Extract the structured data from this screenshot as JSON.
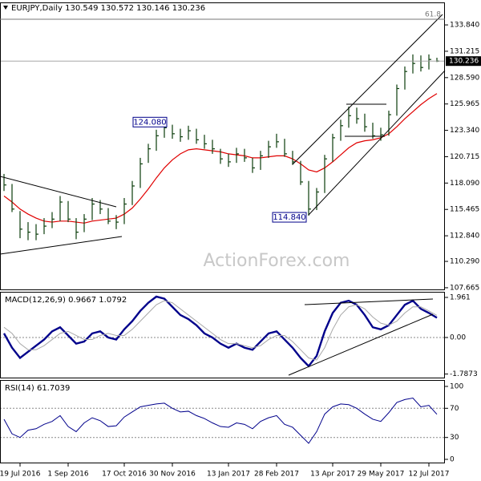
{
  "chart_data": [
    {
      "type": "ohlc",
      "title": "EURJPY,Daily  130.549 130.572 130.146 130.236",
      "watermark": "ActionForex.com",
      "fib_label": "61.8",
      "annotations": [
        {
          "value": 124.08,
          "label": "124.080"
        },
        {
          "value": 114.84,
          "label": "114.840"
        }
      ],
      "categories": [
        null,
        null,
        "19 Jul 2016",
        null,
        null,
        null,
        null,
        null,
        "1 Sep 2016",
        null,
        null,
        null,
        null,
        null,
        null,
        "17 Oct 2016",
        null,
        null,
        null,
        null,
        null,
        "30 Nov 2016",
        null,
        null,
        null,
        null,
        null,
        null,
        "13 Jan 2017",
        null,
        null,
        null,
        null,
        null,
        "28 Feb 2017",
        null,
        null,
        null,
        null,
        null,
        null,
        "13 Apr 2017",
        null,
        null,
        null,
        null,
        null,
        "29 May 2017",
        null,
        null,
        null,
        null,
        null,
        "12 Jul 2017",
        null
      ],
      "high": [
        119.0,
        118.0,
        115.3,
        114.2,
        114.0,
        114.6,
        115.2,
        116.8,
        116.3,
        114.6,
        115.0,
        116.6,
        116.4,
        115.6,
        114.9,
        116.6,
        118.3,
        120.6,
        122.0,
        123.4,
        124.08,
        123.9,
        123.5,
        123.8,
        123.5,
        122.9,
        122.4,
        121.5,
        121.0,
        121.6,
        121.5,
        120.6,
        121.3,
        122.3,
        123.0,
        122.5,
        121.3,
        120.3,
        118.3,
        117.6,
        120.9,
        123.0,
        124.4,
        125.7,
        125.6,
        125.0,
        124.1,
        123.6,
        125.3,
        127.9,
        129.7,
        130.9,
        130.8,
        130.9,
        130.572
      ],
      "low": [
        117.3,
        115.2,
        112.6,
        112.4,
        112.4,
        113.0,
        113.6,
        114.3,
        114.2,
        112.5,
        113.2,
        114.4,
        115.0,
        114.0,
        113.5,
        114.0,
        115.9,
        117.6,
        120.1,
        121.3,
        122.6,
        122.5,
        122.2,
        122.4,
        122.0,
        121.5,
        121.0,
        120.0,
        119.7,
        120.1,
        120.2,
        119.1,
        119.4,
        120.6,
        121.6,
        120.7,
        119.9,
        117.9,
        114.84,
        115.4,
        117.1,
        120.2,
        122.3,
        123.6,
        124.0,
        123.2,
        122.5,
        122.3,
        122.8,
        124.8,
        127.4,
        129.0,
        129.2,
        129.4,
        130.146
      ],
      "close": [
        117.9,
        115.5,
        113.5,
        113.2,
        113.0,
        113.8,
        114.5,
        116.2,
        114.5,
        113.2,
        114.5,
        116.0,
        115.5,
        114.3,
        114.2,
        116.0,
        117.8,
        120.0,
        121.5,
        122.8,
        123.6,
        123.0,
        122.7,
        123.3,
        122.4,
        122.0,
        121.5,
        120.5,
        120.2,
        121.0,
        120.6,
        119.6,
        120.8,
        121.7,
        122.2,
        121.0,
        120.2,
        118.2,
        115.5,
        117.2,
        120.5,
        122.6,
        123.8,
        124.8,
        124.5,
        123.7,
        122.8,
        122.9,
        124.9,
        127.5,
        129.2,
        130.0,
        129.6,
        130.4,
        130.236
      ],
      "bar_color": "#0b3d0b",
      "ma_values": [
        116.8,
        116.2,
        115.5,
        115.0,
        114.6,
        114.3,
        114.2,
        114.3,
        114.3,
        114.2,
        114.1,
        114.3,
        114.4,
        114.5,
        114.6,
        115.0,
        115.6,
        116.5,
        117.5,
        118.6,
        119.6,
        120.4,
        121.0,
        121.4,
        121.5,
        121.4,
        121.3,
        121.2,
        121.0,
        120.9,
        120.8,
        120.6,
        120.6,
        120.7,
        120.8,
        120.8,
        120.5,
        120.0,
        119.4,
        119.2,
        119.6,
        120.2,
        120.9,
        121.6,
        122.1,
        122.3,
        122.4,
        122.6,
        123.0,
        123.7,
        124.5,
        125.2,
        125.9,
        126.5,
        127.0
      ],
      "ma_color": "#e00000",
      "ylim": [
        107.42,
        136.08
      ],
      "yticks": [
        {
          "value": 133.84,
          "label": "133.840"
        },
        131.215,
        {
          "value": 128.59,
          "label": "128.590"
        },
        125.965,
        {
          "value": 123.34,
          "label": "123.340"
        },
        120.715,
        {
          "value": 118.09,
          "label": "118.090"
        },
        115.465,
        {
          "value": 112.84,
          "label": "112.840"
        },
        {
          "value": 110.29,
          "label": "110.290"
        },
        107.665
      ]
    },
    {
      "type": "line",
      "title": "MACD(12,26,9) 0.9667 1.0792",
      "series": [
        {
          "color": "#00008b",
          "values": [
            0.2,
            -0.5,
            -1.0,
            -0.7,
            -0.4,
            -0.1,
            0.3,
            0.5,
            0.1,
            -0.3,
            -0.2,
            0.2,
            0.3,
            0.0,
            -0.1,
            0.4,
            0.8,
            1.3,
            1.7,
            2.0,
            1.9,
            1.5,
            1.1,
            0.9,
            0.6,
            0.2,
            0.0,
            -0.3,
            -0.5,
            -0.3,
            -0.5,
            -0.6,
            -0.2,
            0.2,
            0.3,
            -0.1,
            -0.5,
            -1.0,
            -1.4,
            -0.9,
            0.3,
            1.2,
            1.7,
            1.8,
            1.6,
            1.1,
            0.5,
            0.4,
            0.6,
            1.1,
            1.6,
            1.8,
            1.4,
            1.2,
            0.9667
          ]
        },
        {
          "color": "#a8a8a8",
          "values": [
            0.5,
            0.2,
            -0.3,
            -0.6,
            -0.6,
            -0.4,
            -0.1,
            0.2,
            0.3,
            0.1,
            -0.1,
            -0.1,
            0.1,
            0.2,
            0.1,
            0.1,
            0.4,
            0.8,
            1.2,
            1.6,
            1.8,
            1.7,
            1.4,
            1.1,
            0.8,
            0.5,
            0.2,
            -0.1,
            -0.3,
            -0.3,
            -0.4,
            -0.5,
            -0.4,
            -0.1,
            0.1,
            0.1,
            -0.2,
            -0.6,
            -1.0,
            -1.1,
            -0.5,
            0.4,
            1.1,
            1.5,
            1.6,
            1.4,
            1.0,
            0.7,
            0.6,
            0.8,
            1.2,
            1.5,
            1.5,
            1.3,
            1.0792
          ]
        }
      ],
      "levels": [
        0
      ],
      "ylim": [
        -2.0,
        2.235
      ],
      "yticks": [
        1.961,
        {
          "value": 0,
          "label": "0.00"
        },
        -1.7873
      ]
    },
    {
      "type": "line",
      "title": "RSI(14) 61.7039",
      "series": [
        {
          "color": "#00008b",
          "values": [
            55,
            35,
            30,
            40,
            42,
            48,
            52,
            60,
            45,
            38,
            50,
            57,
            53,
            45,
            46,
            58,
            65,
            72,
            74,
            76,
            77,
            70,
            65,
            66,
            60,
            56,
            50,
            45,
            44,
            50,
            48,
            42,
            52,
            57,
            60,
            48,
            44,
            33,
            22,
            38,
            62,
            72,
            76,
            75,
            70,
            62,
            55,
            52,
            64,
            78,
            82,
            84,
            72,
            74,
            61.7039
          ]
        }
      ],
      "levels": [
        70,
        30
      ],
      "ylim": [
        -5.5,
        108.8
      ],
      "yticks": [
        100,
        70,
        30,
        0
      ]
    }
  ]
}
